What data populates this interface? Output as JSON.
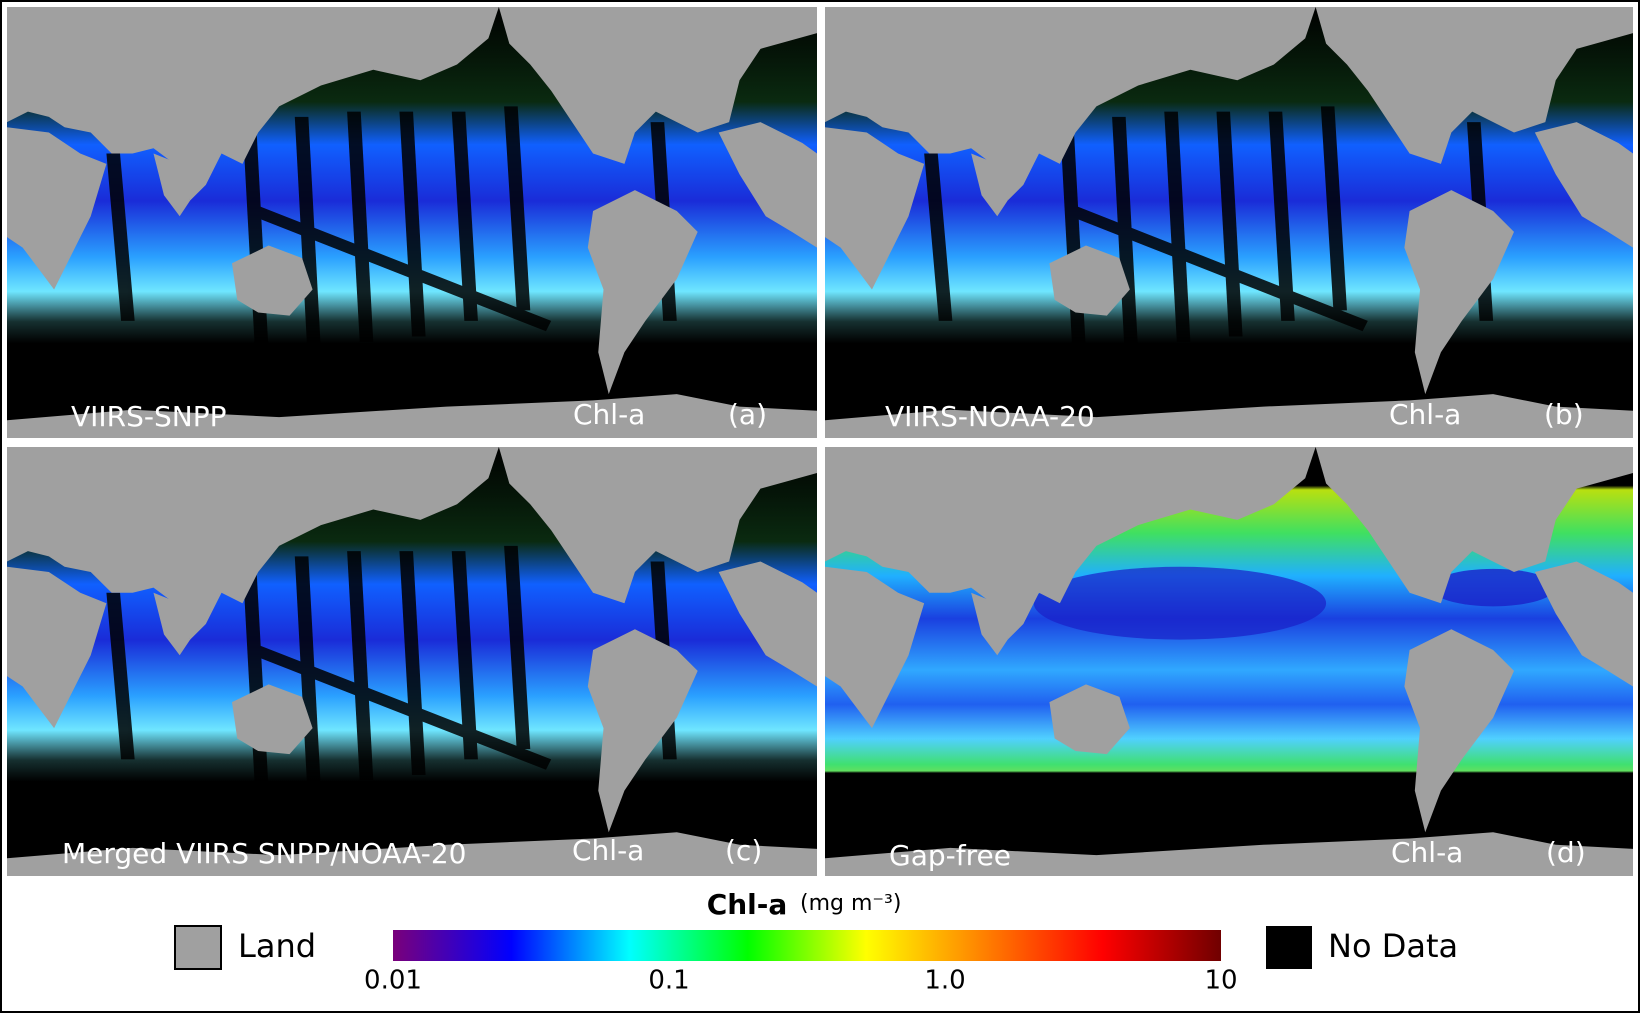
{
  "panels": [
    {
      "title": "VIIRS-SNPP",
      "variable": "Chl-a",
      "label": "(a)"
    },
    {
      "title": "VIIRS-NOAA-20",
      "variable": "Chl-a",
      "label": "(b)"
    },
    {
      "title": "Merged VIIRS SNPP/NOAA-20",
      "variable": "Chl-a",
      "label": "(c)"
    },
    {
      "title": "Gap-free",
      "variable": "Chl-a",
      "label": "(d)"
    }
  ],
  "colorbar": {
    "title": "Chl-a",
    "units": "(mg m⁻³)",
    "scale": "log",
    "lim": [
      0.01,
      10
    ],
    "ticks": [
      0.01,
      0.1,
      {
        "value": 1,
        "label": "1.0"
      },
      10
    ],
    "colors": [
      "#7a007a",
      "#0000ff",
      "#00ffff",
      "#00ff00",
      "#ffff00",
      "#ff8000",
      "#ff0000",
      "#700000"
    ]
  },
  "legend": [
    {
      "label": "Land",
      "color": "#a0a0a0"
    },
    {
      "label": "No Data",
      "color": "#000000"
    }
  ]
}
